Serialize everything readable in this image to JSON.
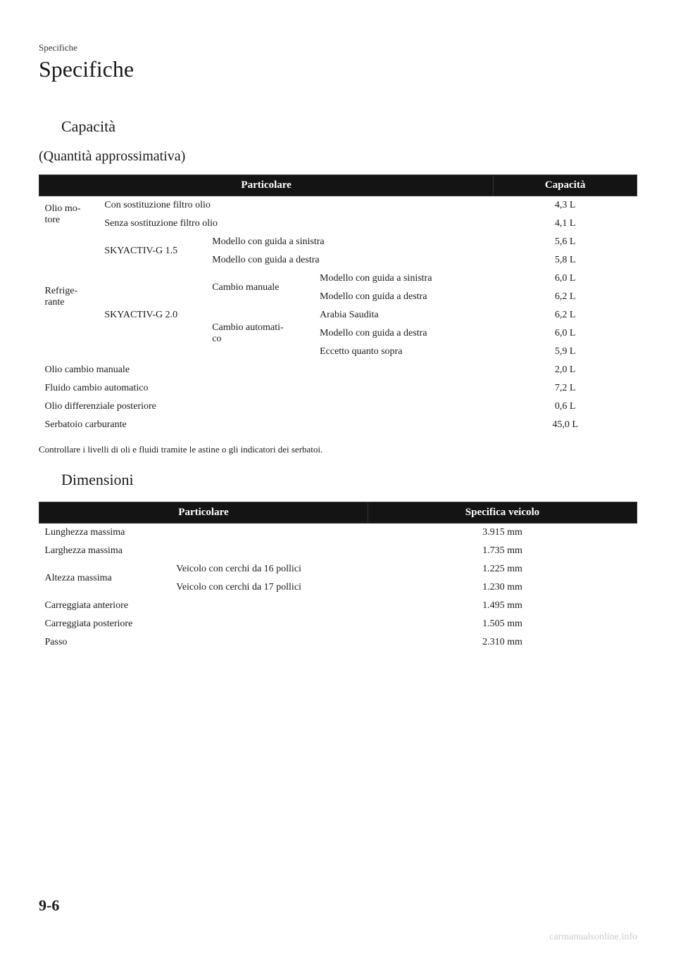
{
  "header": {
    "breadcrumb": "Specifiche",
    "title": "Specifiche"
  },
  "capacity": {
    "section_title": "Capacità",
    "subtitle": "(Quantità approssimativa)",
    "table": {
      "header_particolare": "Particolare",
      "header_capacita": "Capacità",
      "rows": {
        "olio_motore_label": "Olio mo-\ntore",
        "olio_motore_con": "Con sostituzione filtro olio",
        "olio_motore_con_val": "4,3 L",
        "olio_motore_senza": "Senza sostituzione filtro olio",
        "olio_motore_senza_val": "4,1 L",
        "refrigerante_label": "Refrige-\nrante",
        "skyactiv15": "SKYACTIV-G 1.5",
        "skyactiv15_sin": "Modello con guida a sinistra",
        "skyactiv15_sin_val": "5,6 L",
        "skyactiv15_des": "Modello con guida a destra",
        "skyactiv15_des_val": "5,8 L",
        "skyactiv20": "SKYACTIV-G 2.0",
        "cambio_manuale": "Cambio manuale",
        "cm_sin": "Modello con guida a sinistra",
        "cm_sin_val": "6,0 L",
        "cm_des": "Modello con guida a destra",
        "cm_des_val": "6,2 L",
        "cambio_auto": "Cambio automati-\nco",
        "ca_arabia": "Arabia Saudita",
        "ca_arabia_val": "6,2 L",
        "ca_des": "Modello con guida a destra",
        "ca_des_val": "6,0 L",
        "ca_eccetto": "Eccetto quanto sopra",
        "ca_eccetto_val": "5,9 L",
        "olio_cambio_man": "Olio cambio manuale",
        "olio_cambio_man_val": "2,0 L",
        "fluido_cambio_auto": "Fluido cambio automatico",
        "fluido_cambio_auto_val": "7,2 L",
        "olio_diff": "Olio differenziale posteriore",
        "olio_diff_val": "0,6 L",
        "serbatoio": "Serbatoio carburante",
        "serbatoio_val": "45,0 L"
      }
    },
    "note": "Controllare i livelli di oli e fluidi tramite le astine o gli indicatori dei serbatoi."
  },
  "dimensions": {
    "section_title": "Dimensioni",
    "table": {
      "header_particolare": "Particolare",
      "header_specifica": "Specifica veicolo",
      "rows": {
        "lunghezza": "Lunghezza massima",
        "lunghezza_val": "3.915 mm",
        "larghezza": "Larghezza massima",
        "larghezza_val": "1.735 mm",
        "altezza": "Altezza massima",
        "altezza_16": "Veicolo con cerchi da 16 pollici",
        "altezza_16_val": "1.225 mm",
        "altezza_17": "Veicolo con cerchi da 17 pollici",
        "altezza_17_val": "1.230 mm",
        "carr_ant": "Carreggiata anteriore",
        "carr_ant_val": "1.495 mm",
        "carr_post": "Carreggiata posteriore",
        "carr_post_val": "1.505 mm",
        "passo": "Passo",
        "passo_val": "2.310 mm"
      }
    }
  },
  "footer": {
    "page_number": "9-6",
    "watermark": "carmanualsonline.info"
  }
}
